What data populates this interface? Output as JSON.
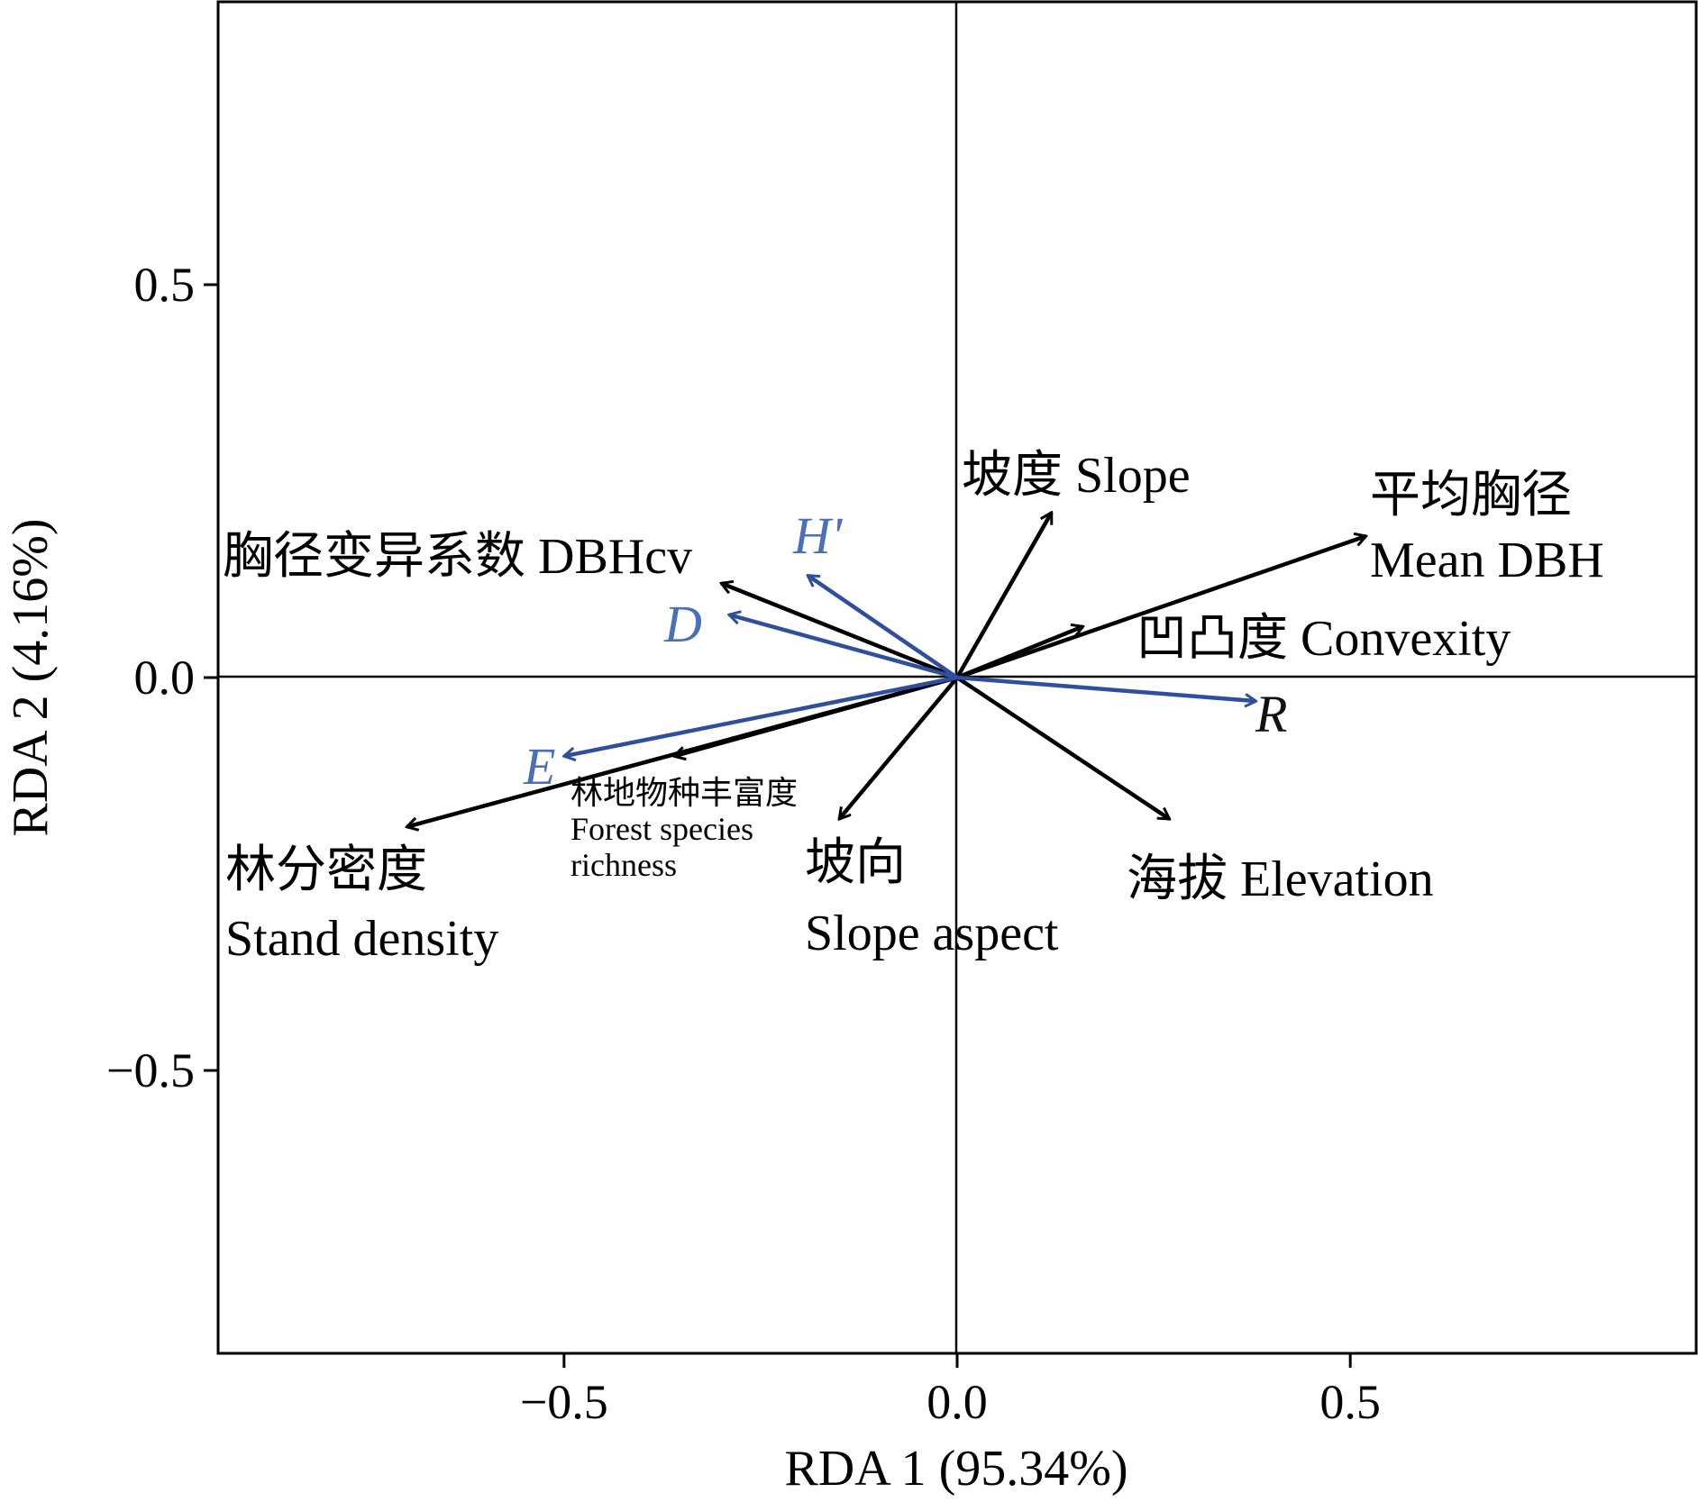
{
  "chart_data": {
    "type": "biplot",
    "xlabel": "RDA 1 (95.34%)",
    "ylabel": "RDA 2 (4.16%)",
    "xlim": [
      -0.94,
      0.94
    ],
    "ylim": [
      -0.86,
      0.86
    ],
    "x_ticks": [
      {
        "value": -0.5,
        "label": "−0.5"
      },
      {
        "value": 0.0,
        "label": "0.0"
      },
      {
        "value": 0.5,
        "label": "0.5"
      }
    ],
    "y_ticks": [
      {
        "value": 0.5,
        "label": "0.5"
      },
      {
        "value": 0.0,
        "label": "0.0"
      },
      {
        "value": -0.5,
        "label": "−0.5"
      }
    ],
    "reference_lines": {
      "x": 0,
      "y": 0
    },
    "grid": false,
    "colors": {
      "explanatory": "#000000",
      "response": "#2e4f9e",
      "response_label": "#4a70b9"
    },
    "explanatory_vectors": [
      {
        "id": "mean-dbh",
        "x": 0.52,
        "y": 0.18,
        "lines": [
          "平均胸径",
          "Mean DBH"
        ]
      },
      {
        "id": "slope",
        "x": 0.12,
        "y": 0.21,
        "lines": [
          "坡度 Slope"
        ]
      },
      {
        "id": "convexity",
        "x": 0.16,
        "y": 0.065,
        "lines": [
          "凹凸度 Convexity"
        ]
      },
      {
        "id": "dbhcv",
        "x": -0.3,
        "y": 0.12,
        "lines": [
          "胸径变异系数 DBHcv"
        ]
      },
      {
        "id": "forest-species-richness",
        "x": -0.36,
        "y": -0.1,
        "lines": [
          "林地物种丰富度",
          "Forest species",
          "richness"
        ]
      },
      {
        "id": "stand-density",
        "x": -0.7,
        "y": -0.19,
        "lines": [
          "林分密度",
          "Stand density"
        ]
      },
      {
        "id": "slope-aspect",
        "x": -0.15,
        "y": -0.18,
        "lines": [
          "坡向",
          "Slope aspect"
        ]
      },
      {
        "id": "elevation",
        "x": 0.27,
        "y": -0.18,
        "lines": [
          "海拔 Elevation"
        ]
      }
    ],
    "response_vectors": [
      {
        "id": "h-prime",
        "x": -0.19,
        "y": 0.13,
        "label": "H'"
      },
      {
        "id": "d",
        "x": -0.29,
        "y": 0.08,
        "label": "D"
      },
      {
        "id": "e",
        "x": -0.5,
        "y": -0.1,
        "label": "E"
      },
      {
        "id": "r",
        "x": 0.38,
        "y": -0.03,
        "label": "R"
      }
    ]
  }
}
